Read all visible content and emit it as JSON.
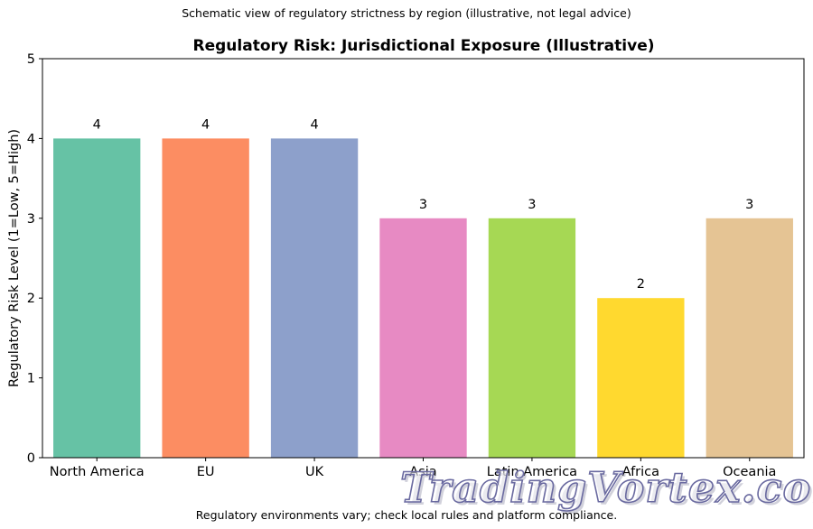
{
  "header": {
    "suptitle": "Schematic view of regulatory strictness by region (illustrative, not legal advice)"
  },
  "footer": {
    "note": "Regulatory environments vary; check local rules and platform compliance."
  },
  "watermark": {
    "text": "TradingVortex.com"
  },
  "chart_data": {
    "type": "bar",
    "title": "Regulatory Risk: Jurisdictional Exposure (Illustrative)",
    "xlabel": "",
    "ylabel": "Regulatory Risk Level (1=Low, 5=High)",
    "categories": [
      "North America",
      "EU",
      "UK",
      "Asia",
      "Latin America",
      "Africa",
      "Oceania"
    ],
    "values": [
      4,
      4,
      4,
      3,
      3,
      2,
      3
    ],
    "colors": [
      "#66c2a5",
      "#fc8d62",
      "#8da0cb",
      "#e78ac3",
      "#a6d854",
      "#ffd92f",
      "#e5c494"
    ],
    "ylim": [
      0,
      5
    ],
    "yticks": [
      0,
      1,
      2,
      3,
      4,
      5
    ],
    "data_labels": true,
    "grid": false,
    "legend": "none"
  }
}
